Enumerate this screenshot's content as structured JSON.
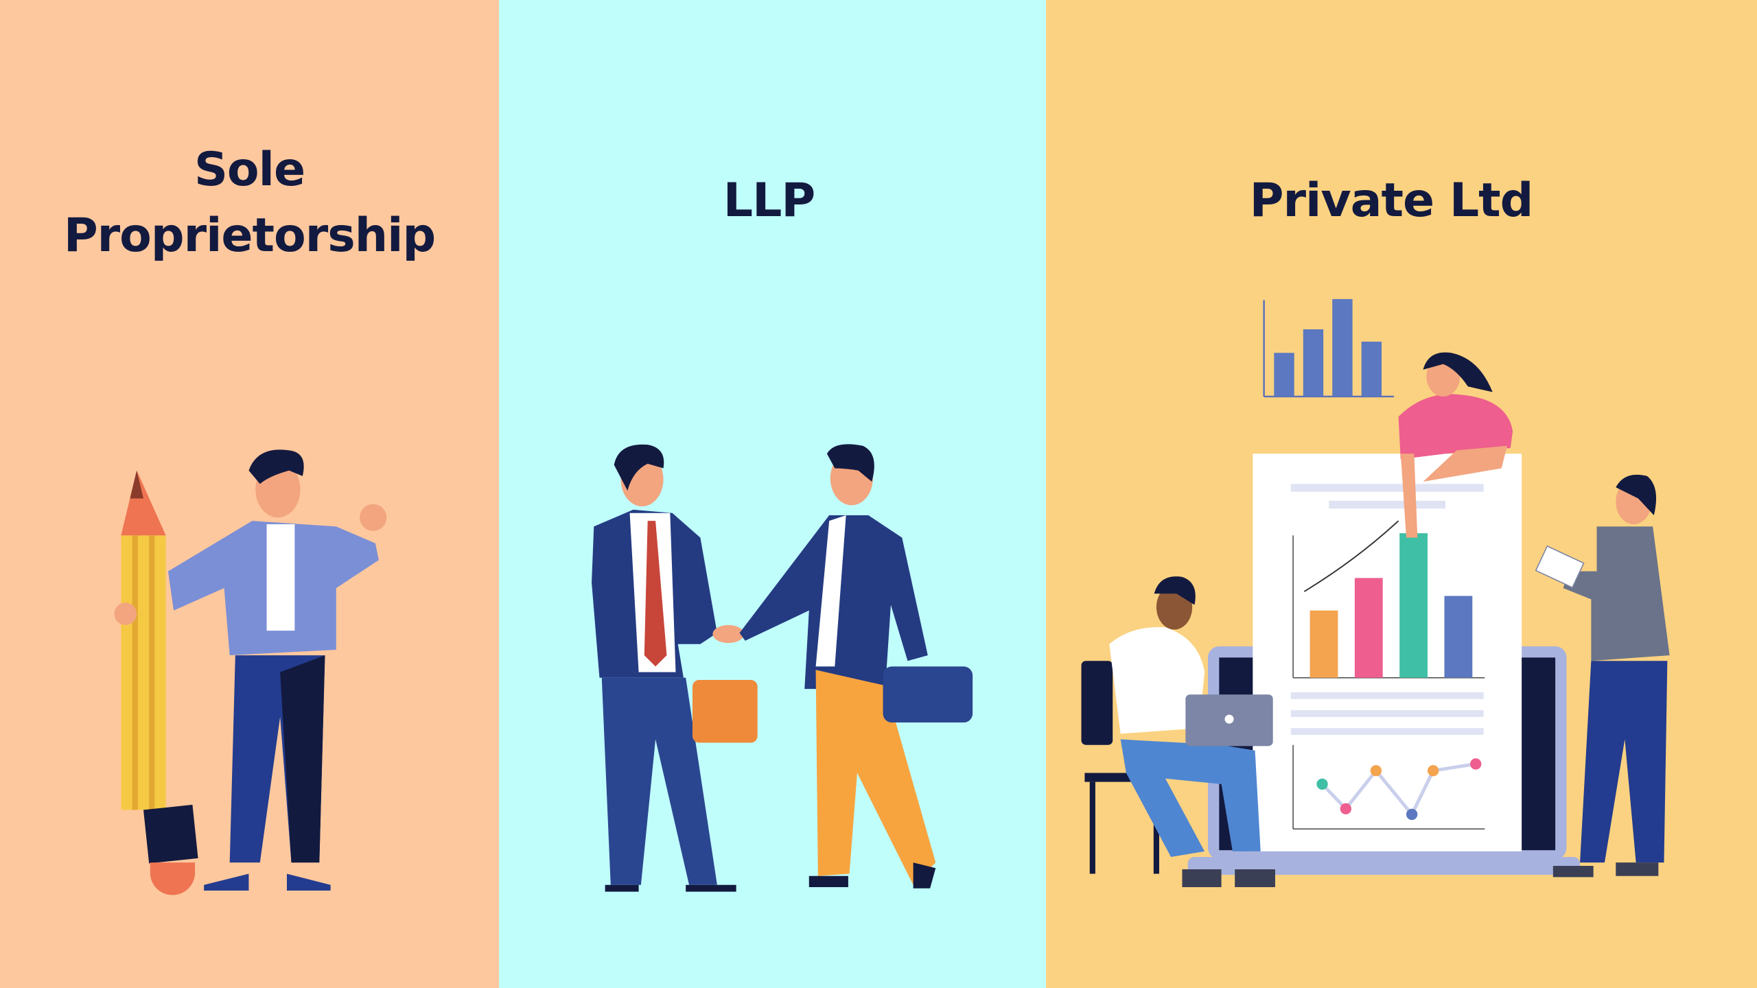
{
  "panels": [
    {
      "title_line1": "Sole",
      "title_line2": "Proprietorship",
      "background": "#fec89e"
    },
    {
      "title": "LLP",
      "background": "#c0fefc"
    },
    {
      "title": "Private Ltd",
      "background": "#fbd281"
    }
  ],
  "colors": {
    "title_text": "#131a3f"
  }
}
